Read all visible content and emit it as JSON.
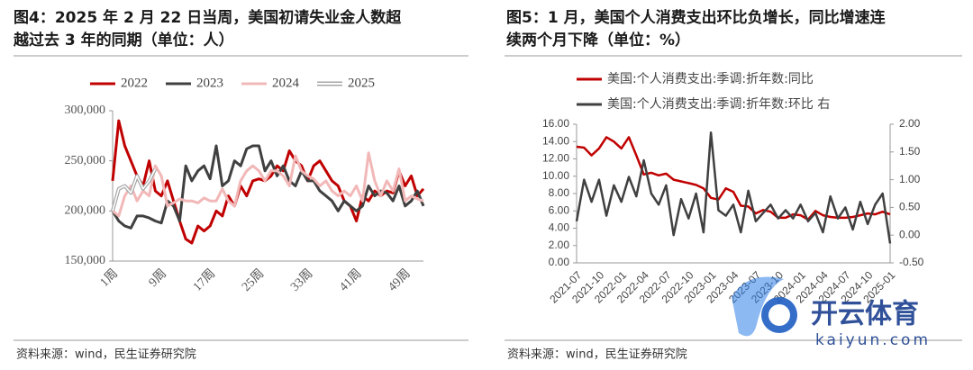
{
  "chart_data": [
    {
      "type": "line",
      "title": [
        "图4：2025 年 2 月 22 日当周，美国初请失业金人数超",
        "越过去 3 年的同期（单位：人）"
      ],
      "source": "资料来源：wind，民生证券研究院",
      "categories": [
        "1周",
        null,
        null,
        null,
        null,
        null,
        null,
        null,
        "9周",
        null,
        null,
        null,
        null,
        null,
        null,
        null,
        "17周",
        null,
        null,
        null,
        null,
        null,
        null,
        null,
        "25周",
        null,
        null,
        null,
        null,
        null,
        null,
        null,
        "33周",
        null,
        null,
        null,
        null,
        null,
        null,
        null,
        "41周",
        null,
        null,
        null,
        null,
        null,
        null,
        null,
        "49周",
        null,
        null,
        null
      ],
      "ylim": [
        150000,
        300000
      ],
      "yticks": [
        {
          "value": 150000,
          "label": "150,000"
        },
        {
          "value": 200000,
          "label": "200,000"
        },
        {
          "value": 250000,
          "label": "250,000"
        },
        {
          "value": 300000,
          "label": "300,000"
        }
      ],
      "series": [
        {
          "name": "2022",
          "color": "#c00000",
          "style": "solid",
          "values": [
            230000,
            290000,
            265000,
            250000,
            235000,
            225000,
            250000,
            220000,
            215000,
            230000,
            210000,
            190000,
            172000,
            168000,
            185000,
            180000,
            185000,
            200000,
            195000,
            215000,
            205000,
            225000,
            215000,
            230000,
            232000,
            230000,
            235000,
            245000,
            240000,
            260000,
            250000,
            245000,
            230000,
            245000,
            250000,
            240000,
            230000,
            225000,
            210000,
            205000,
            190000,
            215000,
            210000,
            220000,
            215000,
            220000,
            218000,
            240000,
            225000,
            235000,
            215000,
            222000
          ]
        },
        {
          "name": "2023",
          "color": "#404040",
          "style": "solid",
          "values": [
            200000,
            190000,
            185000,
            183000,
            195000,
            195000,
            193000,
            190000,
            188000,
            210000,
            205000,
            190000,
            245000,
            230000,
            240000,
            245000,
            232000,
            265000,
            225000,
            230000,
            250000,
            245000,
            262000,
            265000,
            265000,
            240000,
            250000,
            235000,
            245000,
            230000,
            225000,
            240000,
            230000,
            230000,
            220000,
            215000,
            210000,
            200000,
            210000,
            205000,
            200000,
            205000,
            225000,
            215000,
            220000,
            218000,
            210000,
            225000,
            205000,
            210000,
            220000,
            205000
          ]
        },
        {
          "name": "2024",
          "color": "#f2b8b8",
          "style": "solid",
          "values": [
            200000,
            195000,
            215000,
            225000,
            210000,
            220000,
            215000,
            245000,
            235000,
            205000,
            208000,
            212000,
            210000,
            210000,
            208000,
            213000,
            210000,
            210000,
            222000,
            210000,
            205000,
            230000,
            240000,
            245000,
            240000,
            230000,
            240000,
            240000,
            235000,
            225000,
            255000,
            240000,
            235000,
            232000,
            225000,
            230000,
            220000,
            215000,
            220000,
            215000,
            225000,
            210000,
            258000,
            230000,
            215000,
            230000,
            220000,
            242000,
            210000,
            215000,
            212000,
            210000
          ]
        },
        {
          "name": "2025",
          "color": "#a6a6a6",
          "style": "double",
          "values": [
            200000,
            222000,
            225000,
            218000,
            235000,
            222000,
            230000,
            242000,
            null,
            null,
            null,
            null,
            null,
            null,
            null,
            null,
            null,
            null,
            null,
            null,
            null,
            null,
            null,
            null,
            null,
            null,
            null,
            null,
            null,
            null,
            null,
            null,
            null,
            null,
            null,
            null,
            null,
            null,
            null,
            null,
            null,
            null,
            null,
            null,
            null,
            null,
            null,
            null,
            null,
            null,
            null,
            null
          ]
        }
      ]
    },
    {
      "type": "line",
      "title": [
        "图5：1 月，美国个人消费支出环比负增长，同比增速连",
        "续两个月下降（单位：%）"
      ],
      "source": "资料来源：wind，民生证券研究院",
      "categories": [
        "2021-07",
        null,
        null,
        "2021-10",
        null,
        null,
        "2022-01",
        null,
        null,
        "2022-04",
        null,
        null,
        "2022-07",
        null,
        null,
        "2022-10",
        null,
        null,
        "2023-01",
        null,
        null,
        "2023-04",
        null,
        null,
        "2023-07",
        null,
        null,
        "2023-10",
        null,
        null,
        "2024-01",
        null,
        null,
        "2024-04",
        null,
        null,
        "2024-07",
        null,
        null,
        "2024-10",
        null,
        null,
        "2025-01"
      ],
      "ylim": [
        0,
        16
      ],
      "yticks": [
        {
          "value": 0,
          "label": "0.00"
        },
        {
          "value": 2,
          "label": "2.00"
        },
        {
          "value": 4,
          "label": "4.00"
        },
        {
          "value": 6,
          "label": "6.00"
        },
        {
          "value": 8,
          "label": "8.00"
        },
        {
          "value": 10,
          "label": "10.00"
        },
        {
          "value": 12,
          "label": "12.00"
        },
        {
          "value": 14,
          "label": "14.00"
        },
        {
          "value": 16,
          "label": "16.00"
        }
      ],
      "y2lim": [
        -0.5,
        2
      ],
      "y2ticks": [
        {
          "value": -0.5,
          "label": "-0.50"
        },
        {
          "value": 0,
          "label": "0.00"
        },
        {
          "value": 0.5,
          "label": "0.50"
        },
        {
          "value": 1,
          "label": "1.00"
        },
        {
          "value": 1.5,
          "label": "1.50"
        },
        {
          "value": 2,
          "label": "2.00"
        }
      ],
      "series": [
        {
          "name": "美国:个人消费支出:季调:折年数:同比",
          "color": "#c00000",
          "values": [
            13.4,
            13.3,
            12.4,
            13.2,
            14.5,
            14.0,
            13.2,
            14.5,
            12.4,
            10.2,
            10.4,
            10.1,
            10.3,
            9.6,
            9.4,
            9.2,
            9.0,
            8.6,
            7.5,
            7.3,
            8.6,
            8.2,
            6.6,
            6.5,
            5.7,
            6.1,
            5.9,
            5.2,
            5.2,
            5.6,
            5.5,
            5.0,
            6.0,
            5.5,
            5.3,
            5.2,
            5.2,
            5.3,
            5.5,
            5.7,
            5.6,
            5.9,
            5.6
          ]
        },
        {
          "name": "美国:个人消费支出:季调:折年数:环比 右",
          "color": "#404040",
          "axis": "y2",
          "values": [
            0.25,
            1.0,
            0.6,
            1.0,
            0.35,
            0.9,
            0.6,
            1.05,
            0.7,
            1.35,
            0.75,
            0.55,
            0.9,
            0.0,
            0.65,
            0.3,
            0.75,
            0.05,
            1.85,
            0.45,
            0.35,
            0.55,
            0.05,
            0.8,
            0.25,
            0.4,
            0.55,
            0.3,
            0.45,
            0.3,
            0.55,
            0.25,
            0.4,
            0.05,
            0.7,
            0.3,
            0.5,
            0.1,
            0.6,
            0.2,
            0.55,
            0.75,
            -0.15
          ]
        }
      ]
    }
  ],
  "watermark": {
    "brand": "开云体育",
    "url": "kaiyun.com"
  }
}
